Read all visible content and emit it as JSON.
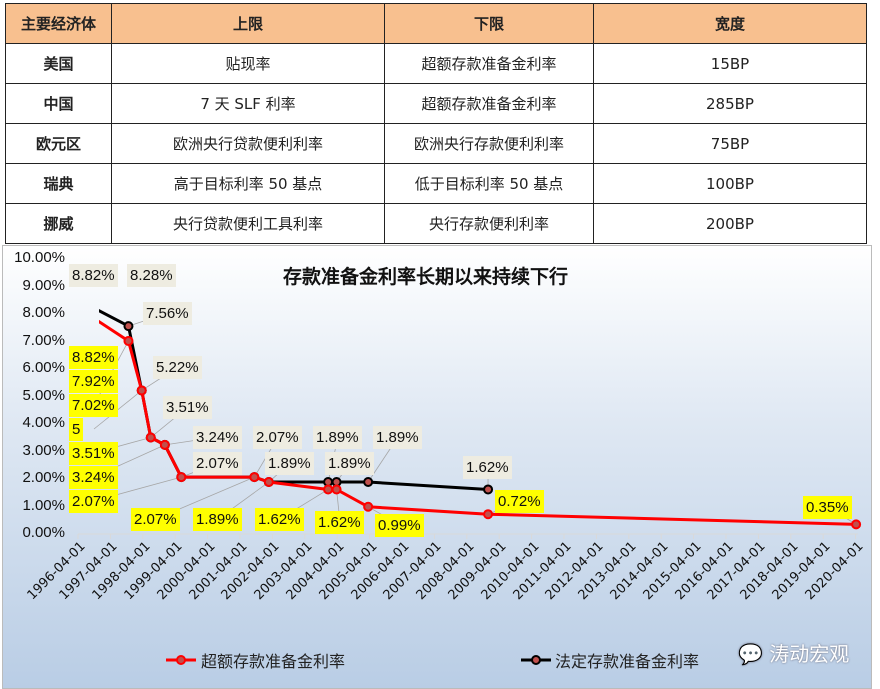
{
  "table": {
    "headers": [
      "主要经济体",
      "上限",
      "下限",
      "宽度"
    ],
    "rows": [
      [
        "美国",
        "贴现率",
        "超额存款准备金利率",
        "15BP"
      ],
      [
        "中国",
        "7 天 SLF 利率",
        "超额存款准备金利率",
        "285BP"
      ],
      [
        "欧元区",
        "欧洲央行贷款便利利率",
        "欧洲央行存款便利利率",
        "75BP"
      ],
      [
        "瑞典",
        "高于目标利率 50 基点",
        "低于目标利率 50 基点",
        "100BP"
      ],
      [
        "挪威",
        "央行贷款便利工具利率",
        "央行存款便利利率",
        "200BP"
      ]
    ]
  },
  "chart_data": {
    "type": "line",
    "title": "存款准备金利率长期以来持续下行",
    "x_axis": {
      "type": "date",
      "ticks": [
        "1996-04-01",
        "1997-04-01",
        "1998-04-01",
        "1999-04-01",
        "2000-04-01",
        "2001-04-01",
        "2002-04-01",
        "2003-04-01",
        "2004-04-01",
        "2005-04-01",
        "2006-04-01",
        "2007-04-01",
        "2008-04-01",
        "2009-04-01",
        "2010-04-01",
        "2011-04-01",
        "2012-04-01",
        "2013-04-01",
        "2014-04-01",
        "2015-04-01",
        "2016-04-01",
        "2017-04-01",
        "2018-04-01",
        "2019-04-01",
        "2020-04-01"
      ]
    },
    "y_axis": {
      "ylim": [
        0,
        10
      ],
      "ticks": [
        "0.00%",
        "1.00%",
        "2.00%",
        "3.00%",
        "4.00%",
        "5.00%",
        "6.00%",
        "7.00%",
        "8.00%",
        "9.00%",
        "10.00%"
      ]
    },
    "grid": false,
    "legend": "bottom",
    "series": [
      {
        "name": "超额存款准备金利率",
        "color": "#ff0000",
        "label_bg": "#ffff00",
        "x": [
          "1996-05-01",
          "1996-08-23",
          "1997-10-23",
          "1998-03-21",
          "1998-07-01",
          "1998-12-07",
          "1999-06-10",
          "2001-09-11",
          "2002-02-21",
          "2003-12-21",
          "2004-03-25",
          "2005-03-17",
          "2008-11-27",
          "2020-04-07"
        ],
        "y": [
          8.82,
          7.92,
          7.02,
          5.22,
          3.51,
          3.24,
          2.07,
          2.07,
          1.89,
          1.62,
          1.62,
          0.99,
          0.72,
          0.35
        ],
        "labels": [
          "8.82%",
          "7.92%",
          "7.02%",
          "5",
          "3.51%",
          "3.24%",
          "2.07%",
          "2.07%",
          "1.89%",
          "1.62%",
          "1.62%",
          "0.99%",
          "0.72%",
          "0.35%"
        ]
      },
      {
        "name": "法定存款准备金利率",
        "color": "#000000",
        "label_bg": "#eeece1",
        "x": [
          "1996-05-01",
          "1996-08-23",
          "1997-10-23",
          "1998-03-21",
          "1998-07-01",
          "1998-12-07",
          "1999-06-10",
          "2001-09-11",
          "2002-02-21",
          "2003-12-21",
          "2004-03-25",
          "2005-03-17",
          "2008-11-27"
        ],
        "y": [
          8.82,
          8.28,
          7.56,
          5.22,
          3.51,
          3.24,
          2.07,
          2.07,
          1.89,
          1.89,
          1.89,
          1.89,
          1.62
        ],
        "labels": [
          "8.82%",
          "8.28%",
          "7.56%",
          "5.22%",
          "3.51%",
          "3.24%",
          "2.07%",
          "2.07%",
          "1.89%",
          "1.89%",
          "1.89%",
          "1.89%",
          "1.62%"
        ]
      }
    ]
  },
  "watermark": "涛动宏观"
}
